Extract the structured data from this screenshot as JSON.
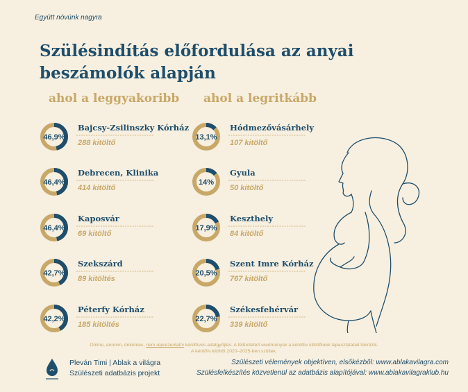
{
  "header": {
    "tagline": "Együtt növünk nagyra",
    "title": "Szülésindítás előfordulása az anyai beszámolók alapján"
  },
  "chart_data": [
    {
      "type": "pie",
      "title": "ahol a leggyakoribb",
      "items": [
        {
          "name": "Bajcsy-Zsilinszky Kórház",
          "percent": 46.9,
          "label": "46,9%",
          "respondents": "288 kitöltő"
        },
        {
          "name": "Debrecen, Klinika",
          "percent": 46.4,
          "label": "46,4%",
          "respondents": "414 kitöltő"
        },
        {
          "name": "Kaposvár",
          "percent": 46.4,
          "label": "46,4%",
          "respondents": "69 kitöltő"
        },
        {
          "name": "Szekszárd",
          "percent": 42.7,
          "label": "42,7%",
          "respondents": "89 kitöltés"
        },
        {
          "name": "Péterfy Kórház",
          "percent": 42.2,
          "label": "42,2%",
          "respondents": "185 kitöltés"
        }
      ]
    },
    {
      "type": "pie",
      "title": "ahol a legritkább",
      "items": [
        {
          "name": "Hódmezővásárhely",
          "percent": 13.1,
          "label": "13,1%",
          "respondents": "107 kitöltő"
        },
        {
          "name": "Gyula",
          "percent": 14.0,
          "label": "14%",
          "respondents": "50 kitöltő"
        },
        {
          "name": "Keszthely",
          "percent": 17.9,
          "label": "17,9%",
          "respondents": "84 kitöltő"
        },
        {
          "name": "Szent Imre Kórház",
          "percent": 20.5,
          "label": "20,5%",
          "respondents": "767 kitöltő"
        },
        {
          "name": "Székesfehérvár",
          "percent": 22.7,
          "label": "22,7%",
          "respondents": "339 kitöltő"
        }
      ]
    }
  ],
  "footer": {
    "note_before": "Online, anonim, önkéntes,",
    "note_underlined": "nem reprezentatív",
    "note_after": "kérdőíves adatgyűjtés. A feltüntetett eredmények a kérdőív kitöltőinek tapasztalatait tükrözik.",
    "note_line2": "A kérdőív kitöltői 2020–2025-ben szültek.",
    "credit_line1": "Pleván Timi | Ablak a világra",
    "credit_line2": "Szülészeti adatbázis projekt",
    "link_line1": "Szülészeti vélemények objektíven, elsőkézből: www.ablakavilagra.com",
    "link_line2": "Szülésfelkészítés közvetlenül az adatbázis alapítójával: www.ablakavilagraklub.hu",
    "logo_caption": "Ablak a világra"
  },
  "colors": {
    "background": "#f7efdf",
    "primary": "#1e4e6c",
    "accent": "#c8a868",
    "ring_track": "#c8a868",
    "ring_fill": "#1e4e6c"
  }
}
